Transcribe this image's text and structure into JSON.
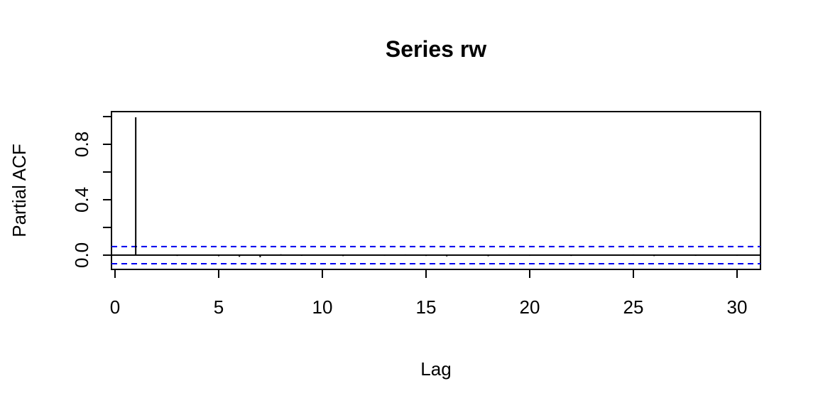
{
  "chart_data": {
    "type": "pacf",
    "title": "Series  rw",
    "x_label": "Lag",
    "y_label": "Partial ACF",
    "x": [
      1,
      2,
      3,
      4,
      5,
      6,
      7,
      8,
      9,
      10,
      11,
      12,
      13,
      14,
      15,
      16,
      17,
      18,
      19,
      20,
      21,
      22,
      23,
      24,
      25,
      26,
      27,
      28,
      29,
      30
    ],
    "values": [
      0.995,
      0.004,
      -0.006,
      0.003,
      -0.008,
      -0.012,
      -0.015,
      0.006,
      -0.005,
      0.004,
      -0.007,
      0.003,
      -0.004,
      0.005,
      -0.006,
      -0.009,
      0.004,
      -0.008,
      0.005,
      -0.004,
      0.003,
      -0.006,
      0.004,
      -0.003,
      0.005,
      -0.007,
      0.004,
      -0.005,
      0.003,
      -0.004
    ],
    "color": "#000000",
    "ci": [
      -0.062,
      0.062
    ],
    "ci_color": "#0000ee",
    "xlim": [
      -0.17,
      31.13
    ],
    "xticks": [
      0,
      5,
      10,
      15,
      20,
      25,
      30
    ],
    "ylim": [
      -0.103,
      1.036
    ],
    "yticks": [
      {
        "value": 0,
        "label": "0.0"
      },
      {
        "value": 0.2,
        "label": null
      },
      {
        "value": 0.4,
        "label": "0.4"
      },
      {
        "value": 0.6,
        "label": null
      },
      {
        "value": 0.8,
        "label": "0.8"
      },
      {
        "value": 1.0,
        "label": null
      }
    ]
  }
}
